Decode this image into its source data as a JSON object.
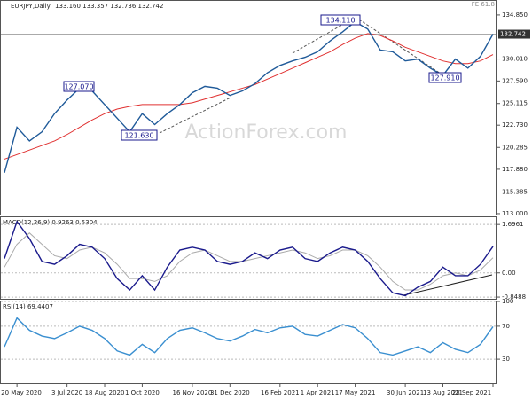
{
  "chart_data": [
    {
      "type": "line",
      "title": "EURJPY,Daily",
      "ohlc_text": "133.160 133.357 132.736 132.742",
      "series": [
        {
          "name": "Close",
          "color": "#1f5a99",
          "values": [
            117.5,
            122.5,
            121,
            122,
            124,
            125.5,
            126.8,
            126.5,
            125,
            123.5,
            122,
            124,
            122.8,
            124,
            125,
            126.3,
            127,
            126.8,
            126,
            126.5,
            127.3,
            128.5,
            129.3,
            129.8,
            130.2,
            130.8,
            132,
            133,
            134.1,
            133.3,
            131,
            130.8,
            129.8,
            130,
            129,
            128.2,
            130,
            129,
            130.3,
            132.742
          ]
        },
        {
          "name": "MA",
          "color": "#e03030",
          "values": [
            119,
            119.5,
            120,
            120.5,
            121,
            121.7,
            122.5,
            123.3,
            124,
            124.5,
            124.8,
            125,
            125,
            125,
            125,
            125.2,
            125.6,
            126,
            126.4,
            126.8,
            127.2,
            127.8,
            128.4,
            129,
            129.6,
            130.2,
            130.8,
            131.6,
            132.3,
            132.8,
            132.6,
            132,
            131.3,
            130.8,
            130.3,
            129.8,
            129.5,
            129.5,
            129.8,
            130.5
          ]
        }
      ],
      "last_price": 132.742,
      "annotations": [
        "134.110",
        "127.070",
        "121.630",
        "127.910",
        "FE 61.8"
      ],
      "watermark": "ActionForex.com",
      "ylim": [
        112.8,
        136.5
      ],
      "yticks": [
        {
          "value": 134.85,
          "label": "134.850"
        },
        {
          "value": 130.01,
          "label": "130.010"
        },
        {
          "value": 127.59,
          "label": "127.590"
        },
        {
          "value": 125.115,
          "label": "125.115"
        },
        {
          "value": 122.73,
          "label": "122.730"
        },
        {
          "value": 120.285,
          "label": "120.285"
        },
        {
          "value": 117.88,
          "label": "117.880"
        },
        {
          "value": 115.385,
          "label": "115.385"
        },
        {
          "value": 113,
          "label": "113.000"
        }
      ]
    },
    {
      "type": "line",
      "title": "MACD(12,26,9) 0.9263 0.5304",
      "series": [
        {
          "name": "MACD",
          "color": "#1a1a8c",
          "values": [
            0.5,
            1.8,
            1.2,
            0.4,
            0.3,
            0.6,
            1.0,
            0.9,
            0.5,
            -0.2,
            -0.6,
            -0.1,
            -0.6,
            0.2,
            0.8,
            0.9,
            0.8,
            0.4,
            0.3,
            0.4,
            0.7,
            0.5,
            0.8,
            0.9,
            0.5,
            0.4,
            0.7,
            0.9,
            0.8,
            0.4,
            -0.2,
            -0.7,
            -0.8,
            -0.5,
            -0.3,
            0.2,
            -0.1,
            -0.1,
            0.3,
            0.9263
          ]
        },
        {
          "name": "Signal",
          "color": "#aaaaaa",
          "values": [
            0.2,
            1.0,
            1.4,
            1.0,
            0.6,
            0.5,
            0.8,
            0.9,
            0.7,
            0.3,
            -0.2,
            -0.2,
            -0.3,
            -0.1,
            0.4,
            0.7,
            0.8,
            0.6,
            0.4,
            0.4,
            0.5,
            0.6,
            0.7,
            0.8,
            0.7,
            0.5,
            0.6,
            0.8,
            0.8,
            0.6,
            0.2,
            -0.3,
            -0.6,
            -0.6,
            -0.4,
            -0.1,
            0.0,
            -0.1,
            0.1,
            0.5304
          ]
        }
      ],
      "ylim": [
        -0.94,
        1.95
      ],
      "yticks": [
        1.6961,
        {
          "value": 0,
          "label": "0.00"
        },
        -0.8488
      ]
    },
    {
      "type": "line",
      "title": "RSI(14) 69.4407",
      "series": [
        {
          "name": "RSI",
          "color": "#3a8fd0",
          "values": [
            45,
            80,
            65,
            58,
            55,
            62,
            70,
            65,
            55,
            40,
            35,
            48,
            38,
            55,
            65,
            68,
            62,
            55,
            52,
            58,
            66,
            62,
            68,
            70,
            60,
            58,
            65,
            72,
            68,
            55,
            38,
            35,
            40,
            45,
            38,
            50,
            42,
            38,
            48,
            69.4407
          ]
        }
      ],
      "ylim": [
        0,
        100
      ],
      "yticks": [
        100,
        70,
        30
      ],
      "categories": [
        null,
        "20 May 2020",
        null,
        null,
        null,
        "3 Jul 2020",
        null,
        null,
        "18 Aug 2020",
        null,
        null,
        "1 Oct 2020",
        null,
        null,
        null,
        "16 Nov 2020",
        null,
        null,
        "31 Dec 2020",
        null,
        null,
        null,
        "16 Feb 2021",
        null,
        null,
        "1 Apr 2021",
        null,
        null,
        "17 May 2021",
        null,
        null,
        null,
        "30 Jun 2021",
        null,
        null,
        "13 Aug 2021",
        null,
        null,
        null,
        "28 Sep 2021"
      ]
    }
  ]
}
